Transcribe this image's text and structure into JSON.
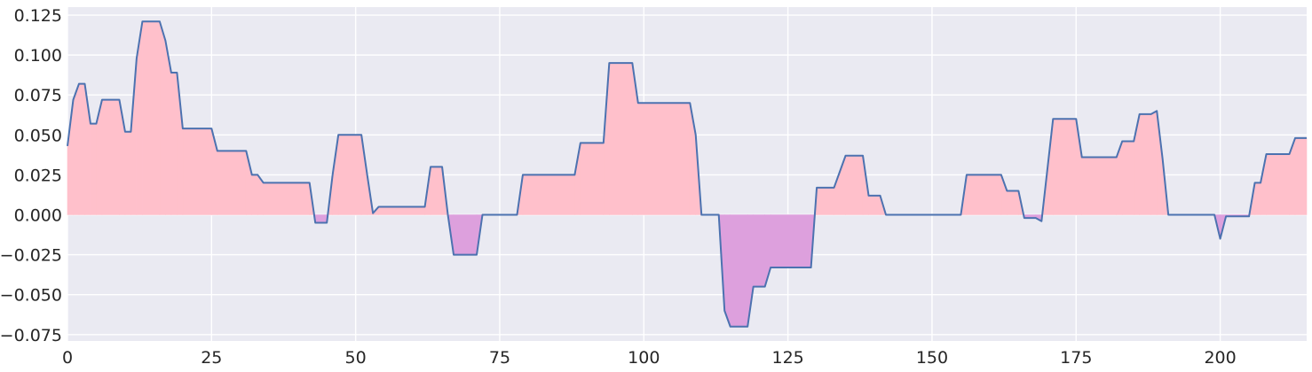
{
  "chart_data": {
    "type": "area",
    "title": "",
    "xlabel": "",
    "ylabel": "",
    "xlim": [
      0,
      215
    ],
    "ylim": [
      -0.079,
      0.13
    ],
    "x_ticks": [
      0,
      25,
      50,
      75,
      100,
      125,
      150,
      175,
      200
    ],
    "x_tick_labels": [
      "0",
      "25",
      "50",
      "75",
      "100",
      "125",
      "150",
      "175",
      "200"
    ],
    "y_ticks": [
      -0.075,
      -0.05,
      -0.025,
      0,
      0.025,
      0.05,
      0.075,
      0.1,
      0.125
    ],
    "y_tick_labels": [
      "−0.075",
      "−0.050",
      "−0.025",
      "0.000",
      "0.025",
      "0.050",
      "0.075",
      "0.100",
      "0.125"
    ],
    "grid": true,
    "colors": {
      "background": "#eaeaf2",
      "grid": "#ffffff",
      "line": "#4c72b0",
      "positive_fill": "#ffc0cb",
      "negative_fill": "#dda0dd"
    },
    "series": [
      {
        "points": [
          [
            0,
            0.043
          ],
          [
            1,
            0.072
          ],
          [
            2,
            0.082
          ],
          [
            3,
            0.082
          ],
          [
            4,
            0.057
          ],
          [
            5,
            0.057
          ],
          [
            6,
            0.072
          ],
          [
            9,
            0.072
          ],
          [
            10,
            0.052
          ],
          [
            11,
            0.052
          ],
          [
            12,
            0.098
          ],
          [
            13,
            0.121
          ],
          [
            16,
            0.121
          ],
          [
            17,
            0.109
          ],
          [
            18,
            0.089
          ],
          [
            19,
            0.089
          ],
          [
            20,
            0.054
          ],
          [
            25,
            0.054
          ],
          [
            26,
            0.04
          ],
          [
            31,
            0.04
          ],
          [
            32,
            0.025
          ],
          [
            33,
            0.025
          ],
          [
            34,
            0.02
          ],
          [
            42,
            0.02
          ],
          [
            43,
            -0.005
          ],
          [
            45,
            -0.005
          ],
          [
            46,
            0.025
          ],
          [
            47,
            0.05
          ],
          [
            51,
            0.05
          ],
          [
            52,
            0.025
          ],
          [
            53,
            0.001
          ],
          [
            54,
            0.005
          ],
          [
            62,
            0.005
          ],
          [
            63,
            0.03
          ],
          [
            65,
            0.03
          ],
          [
            66,
            0.0
          ],
          [
            67,
            -0.025
          ],
          [
            71,
            -0.025
          ],
          [
            72,
            0.0
          ],
          [
            78,
            0.0
          ],
          [
            79,
            0.025
          ],
          [
            88,
            0.025
          ],
          [
            89,
            0.045
          ],
          [
            93,
            0.045
          ],
          [
            94,
            0.095
          ],
          [
            98,
            0.095
          ],
          [
            99,
            0.07
          ],
          [
            108,
            0.07
          ],
          [
            109,
            0.05
          ],
          [
            110,
            0.0
          ],
          [
            113,
            0.0
          ],
          [
            114,
            -0.06
          ],
          [
            115,
            -0.07
          ],
          [
            118,
            -0.07
          ],
          [
            119,
            -0.045
          ],
          [
            121,
            -0.045
          ],
          [
            122,
            -0.033
          ],
          [
            129,
            -0.033
          ],
          [
            130,
            0.017
          ],
          [
            133,
            0.017
          ],
          [
            135,
            0.037
          ],
          [
            138,
            0.037
          ],
          [
            139,
            0.012
          ],
          [
            141,
            0.012
          ],
          [
            142,
            0.0
          ],
          [
            155,
            0.0
          ],
          [
            156,
            0.025
          ],
          [
            162,
            0.025
          ],
          [
            163,
            0.015
          ],
          [
            165,
            0.015
          ],
          [
            166,
            -0.002
          ],
          [
            168,
            -0.002
          ],
          [
            169,
            -0.004
          ],
          [
            171,
            0.06
          ],
          [
            175,
            0.06
          ],
          [
            176,
            0.036
          ],
          [
            182,
            0.036
          ],
          [
            183,
            0.046
          ],
          [
            185,
            0.046
          ],
          [
            186,
            0.063
          ],
          [
            188,
            0.063
          ],
          [
            189,
            0.065
          ],
          [
            190,
            0.035
          ],
          [
            191,
            0.0
          ],
          [
            199,
            0.0
          ],
          [
            200,
            -0.015
          ],
          [
            201,
            -0.001
          ],
          [
            205,
            -0.001
          ],
          [
            206,
            0.02
          ],
          [
            207,
            0.02
          ],
          [
            208,
            0.038
          ],
          [
            212,
            0.038
          ],
          [
            213,
            0.048
          ],
          [
            215,
            0.048
          ]
        ]
      }
    ]
  }
}
